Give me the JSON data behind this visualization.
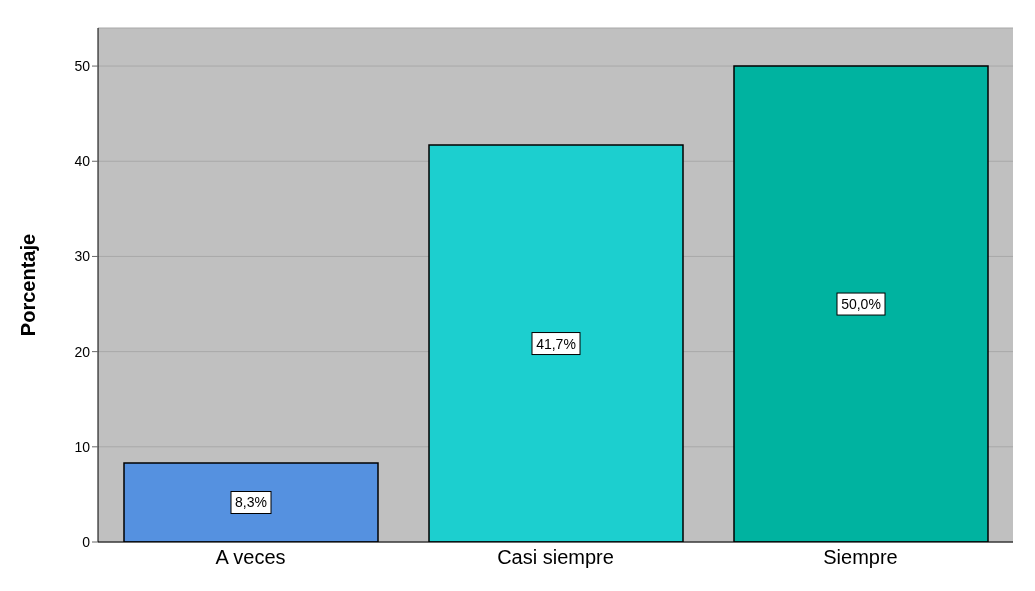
{
  "chart_data": {
    "type": "bar",
    "ylabel": "Porcentaje",
    "categories": [
      "A veces",
      "Casi siempre",
      "Siempre"
    ],
    "values": [
      8.3,
      41.7,
      50.0
    ],
    "colors": [
      "#5591e0",
      "#1ccfcf",
      "#00b3a0"
    ],
    "value_labels": [
      "8,3%",
      "41,7%",
      "50,0%"
    ],
    "ylim": [
      0,
      54
    ],
    "yticks": [
      0,
      10,
      20,
      30,
      40,
      50
    ],
    "grid": "y"
  }
}
